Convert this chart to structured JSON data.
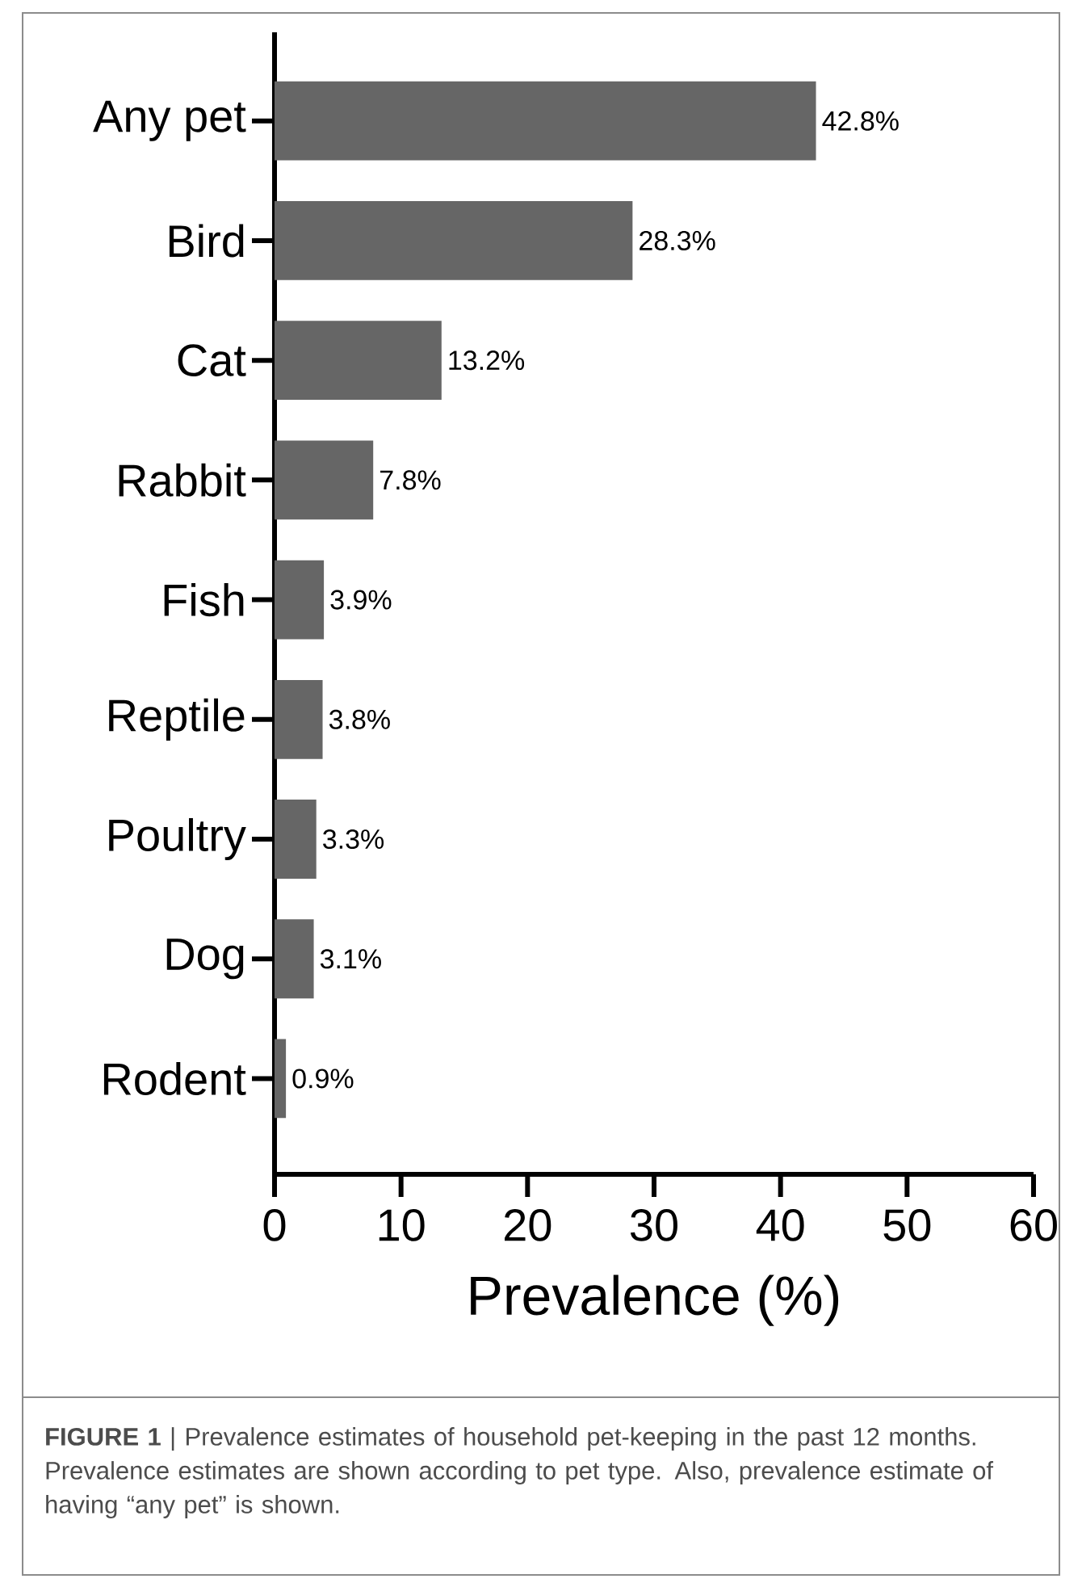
{
  "chart_data": {
    "type": "bar",
    "orientation": "horizontal",
    "xlabel": "Prevalence (%)",
    "categories": [
      "Any pet",
      "Bird",
      "Cat",
      "Rabbit",
      "Fish",
      "Reptile",
      "Poultry",
      "Dog",
      "Rodent"
    ],
    "values": [
      42.8,
      28.3,
      13.2,
      7.8,
      3.9,
      3.8,
      3.3,
      3.1,
      0.9
    ],
    "value_labels": [
      "42.8%",
      "28.3%",
      "13.2%",
      "7.8%",
      "3.9%",
      "3.8%",
      "3.3%",
      "3.1%",
      "0.9%"
    ],
    "color": "#666666",
    "xlim": [
      0,
      60
    ],
    "xticks": [
      0,
      10,
      20,
      30,
      40,
      50,
      60
    ],
    "annotations": [
      "**FIGURE 1** | Prevalence estimates of household pet-keeping in the past 12 months. Prevalence estimates are shown according to pet type. Also, prevalence estimate of having “any pet” is shown."
    ]
  }
}
